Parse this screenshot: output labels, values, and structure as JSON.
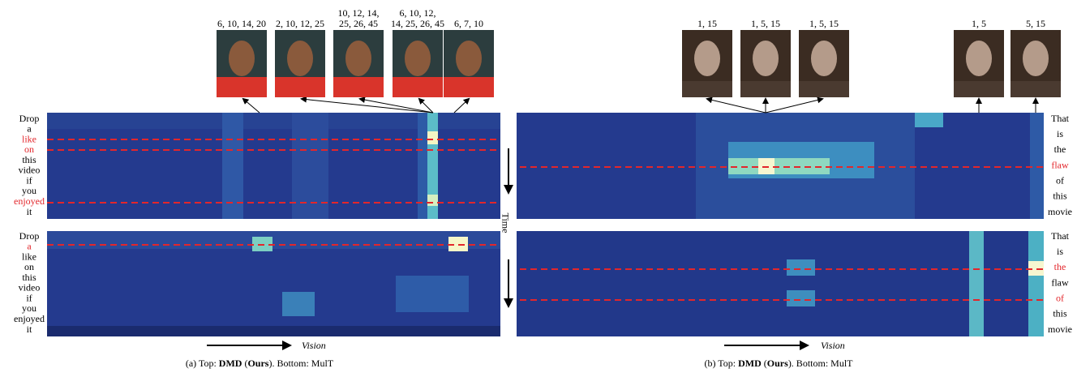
{
  "left": {
    "frames": [
      {
        "label": [
          "6, 10, 14, 20"
        ]
      },
      {
        "label": [
          "2, 10, 12, 25"
        ]
      },
      {
        "label": [
          "10, 12, 14,",
          "25, 26, 45"
        ]
      },
      {
        "label": [
          "6, 10, 12,",
          "14, 25, 26, 45"
        ]
      },
      {
        "label": [
          "6, 7, 10"
        ]
      }
    ],
    "words_top": [
      {
        "text": "Drop",
        "highlight": false
      },
      {
        "text": "a",
        "highlight": false
      },
      {
        "text": "like",
        "highlight": true
      },
      {
        "text": "on",
        "highlight": true
      },
      {
        "text": "this",
        "highlight": false
      },
      {
        "text": "video",
        "highlight": false
      },
      {
        "text": "if",
        "highlight": false
      },
      {
        "text": "you",
        "highlight": false
      },
      {
        "text": "enjoyed",
        "highlight": true
      },
      {
        "text": "it",
        "highlight": false
      }
    ],
    "words_bottom": [
      {
        "text": "Drop",
        "highlight": false
      },
      {
        "text": "a",
        "highlight": true
      },
      {
        "text": "like",
        "highlight": false
      },
      {
        "text": "on",
        "highlight": false
      },
      {
        "text": "this",
        "highlight": false
      },
      {
        "text": "video",
        "highlight": false
      },
      {
        "text": "if",
        "highlight": false
      },
      {
        "text": "you",
        "highlight": false
      },
      {
        "text": "enjoyed",
        "highlight": false
      },
      {
        "text": "it",
        "highlight": false
      }
    ],
    "vision": "Vision",
    "caption": [
      "(a) Top: ",
      "DMD",
      " (",
      "Ours",
      "). Bottom: MulT"
    ]
  },
  "time": "Time",
  "right": {
    "frames": [
      {
        "label": [
          "1, 15"
        ]
      },
      {
        "label": [
          "1, 5, 15"
        ]
      },
      {
        "label": [
          "1, 5, 15"
        ]
      },
      {
        "label": [
          "1, 5"
        ]
      },
      {
        "label": [
          "5, 15"
        ]
      }
    ],
    "words_top": [
      {
        "text": "That",
        "highlight": false
      },
      {
        "text": "is",
        "highlight": false
      },
      {
        "text": "the",
        "highlight": false
      },
      {
        "text": "flaw",
        "highlight": true
      },
      {
        "text": "of",
        "highlight": false
      },
      {
        "text": "this",
        "highlight": false
      },
      {
        "text": "movie",
        "highlight": false
      }
    ],
    "words_bottom": [
      {
        "text": "That",
        "highlight": false
      },
      {
        "text": "is",
        "highlight": false
      },
      {
        "text": "the",
        "highlight": true
      },
      {
        "text": "flaw",
        "highlight": false
      },
      {
        "text": "of",
        "highlight": true
      },
      {
        "text": "this",
        "highlight": false
      },
      {
        "text": "movie",
        "highlight": false
      }
    ],
    "vision": "Vision",
    "caption": [
      "(b) Top: ",
      "DMD",
      " (",
      "Ours",
      "). Bottom: MulT"
    ]
  }
}
